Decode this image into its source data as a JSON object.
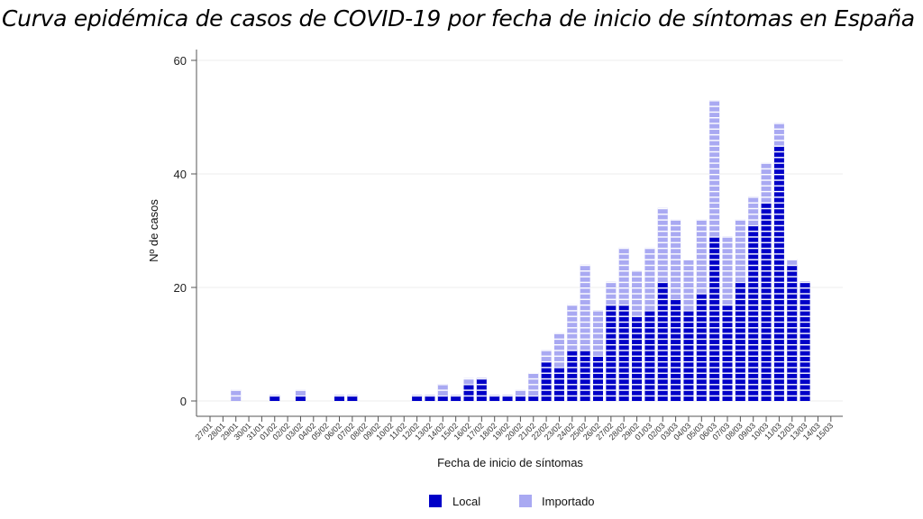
{
  "chart_data": {
    "type": "bar",
    "stacked": true,
    "title": "Curva epidémica de casos de COVID-19 por fecha de inicio de síntomas en España",
    "xlabel": "Fecha de inicio de síntomas",
    "ylabel": "Nº de casos",
    "ylim": [
      0,
      60
    ],
    "yticks": [
      0,
      20,
      40,
      60
    ],
    "grid": true,
    "legend_position": "bottom",
    "categories": [
      "27/01",
      "28/01",
      "29/01",
      "30/01",
      "31/01",
      "01/02",
      "02/02",
      "03/02",
      "04/02",
      "05/02",
      "06/02",
      "07/02",
      "08/02",
      "09/02",
      "10/02",
      "11/02",
      "12/02",
      "13/02",
      "14/02",
      "15/02",
      "16/02",
      "17/02",
      "18/02",
      "19/02",
      "20/02",
      "21/02",
      "22/02",
      "23/02",
      "24/02",
      "25/02",
      "26/02",
      "27/02",
      "28/02",
      "29/02",
      "01/03",
      "02/03",
      "03/03",
      "04/03",
      "05/03",
      "06/03",
      "07/03",
      "08/03",
      "09/03",
      "10/03",
      "11/03",
      "12/03",
      "13/03",
      "14/03",
      "15/03"
    ],
    "series": [
      {
        "name": "Local",
        "color": "#0000c8",
        "values": [
          0,
          0,
          0,
          0,
          0,
          1,
          0,
          1,
          0,
          0,
          1,
          1,
          0,
          0,
          0,
          0,
          1,
          1,
          1,
          1,
          3,
          4,
          1,
          1,
          1,
          1,
          7,
          6,
          9,
          9,
          8,
          17,
          17,
          15,
          16,
          21,
          18,
          16,
          19,
          29,
          17,
          21,
          31,
          35,
          45,
          24,
          21,
          0,
          0
        ]
      },
      {
        "name": "Importado",
        "color": "#a9a9f2",
        "values": [
          0,
          0,
          2,
          0,
          0,
          0,
          0,
          1,
          0,
          0,
          0,
          0,
          0,
          0,
          0,
          0,
          0,
          0,
          2,
          0,
          1,
          0,
          0,
          0,
          1,
          4,
          2,
          6,
          8,
          15,
          8,
          4,
          10,
          8,
          11,
          13,
          14,
          9,
          13,
          24,
          12,
          11,
          5,
          7,
          4,
          1,
          0,
          0,
          0
        ]
      }
    ]
  }
}
